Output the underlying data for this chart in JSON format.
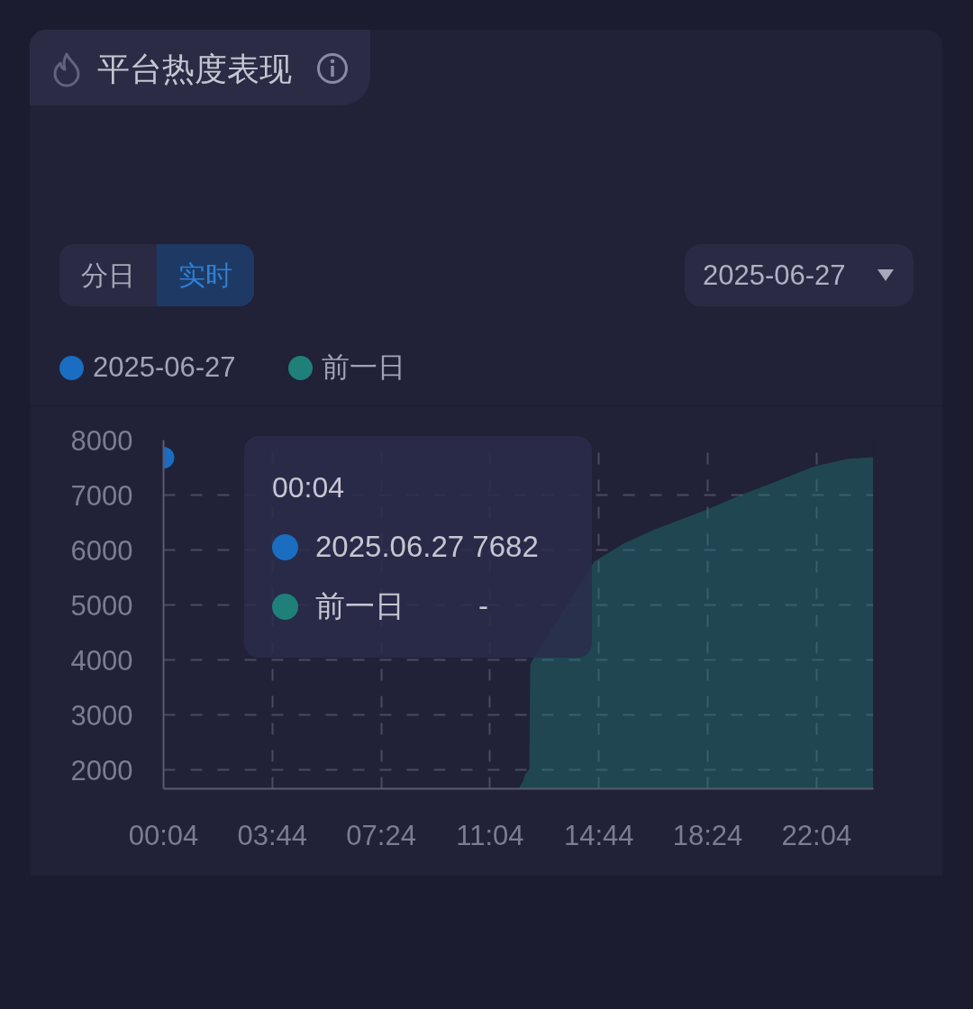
{
  "chart_data": {
    "type": "area",
    "title": "平台热度表现",
    "annotations": [
      "分日",
      "实时",
      "2025-06-27",
      "00:04",
      "2025.06.27 7682",
      "前一日",
      "-"
    ],
    "series": [
      {
        "name": "2025-06-27",
        "type": "scatter",
        "color": "#1a6dc0",
        "marker": "circle",
        "x": [
          0.0667
        ],
        "values": [
          7682
        ]
      },
      {
        "name": "前一日",
        "color": "#1e8078",
        "x": [
          12.06,
          12.18,
          12.24,
          12.39,
          12.42,
          12.54,
          14.57,
          15.57,
          16.59,
          18.29,
          19.61,
          20.62,
          22.03,
          23.13,
          23.98
        ],
        "values": [
          1690,
          1800,
          1910,
          2020,
          3920,
          4040,
          5790,
          6120,
          6370,
          6720,
          7020,
          7230,
          7530,
          7660,
          7690
        ]
      }
    ],
    "xlim": [
      0.0667,
      23.9833
    ],
    "xticks": [
      {
        "value": 0.0667,
        "label": "00:04"
      },
      {
        "value": 3.7333,
        "label": "03:44"
      },
      {
        "value": 7.4,
        "label": "07:24"
      },
      {
        "value": 11.0667,
        "label": "11:04"
      },
      {
        "value": 14.7333,
        "label": "14:44"
      },
      {
        "value": 18.4,
        "label": "18:24"
      },
      {
        "value": 22.0667,
        "label": "22:04"
      }
    ],
    "ylim": [
      1660,
      8000
    ],
    "yticks": [
      2000,
      3000,
      4000,
      5000,
      6000,
      7000,
      8000
    ],
    "grid": true,
    "legend": "top left"
  }
}
